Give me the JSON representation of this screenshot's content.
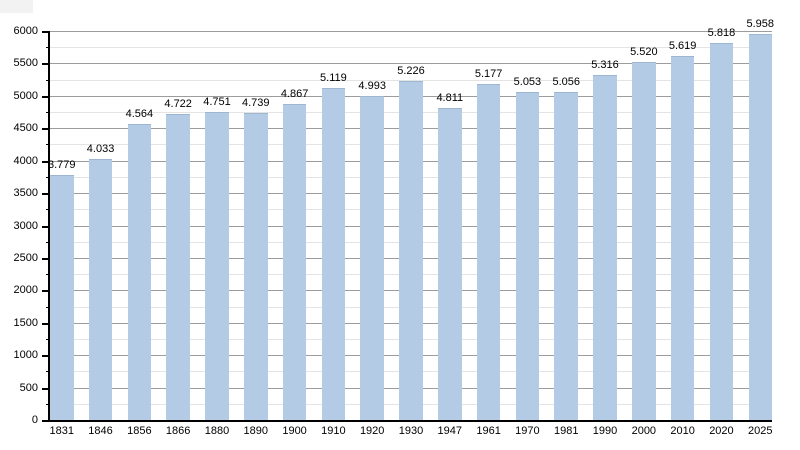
{
  "chart_data": {
    "type": "bar",
    "title": "",
    "xlabel": "",
    "ylabel": "",
    "categories": [
      "1831",
      "1846",
      "1856",
      "1866",
      "1880",
      "1890",
      "1900",
      "1910",
      "1920",
      "1930",
      "1947",
      "1961",
      "1970",
      "1981",
      "1990",
      "2000",
      "2010",
      "2020",
      "2025"
    ],
    "values": [
      3779,
      4033,
      4564,
      4722,
      4751,
      4739,
      4867,
      5119,
      4993,
      5226,
      4811,
      5177,
      5053,
      5056,
      5316,
      5520,
      5619,
      5818,
      5958
    ],
    "value_labels": [
      "3.779",
      "4.033",
      "4.564",
      "4.722",
      "4.751",
      "4.739",
      "4.867",
      "5.119",
      "4.993",
      "5.226",
      "4.811",
      "5.177",
      "5.053",
      "5.056",
      "5.316",
      "5.520",
      "5.619",
      "5.818",
      "5.958"
    ],
    "ylim": [
      0,
      6000
    ],
    "y_major_step": 500,
    "y_minor_step": 250,
    "y_tick_labels": [
      "0",
      "500",
      "1000",
      "1500",
      "2000",
      "2500",
      "3000",
      "3500",
      "4000",
      "4500",
      "5000",
      "5500",
      "6000"
    ],
    "grid": "major-and-minor",
    "legend": "none"
  },
  "colors": {
    "bar_fill": "#b3cbe5",
    "bar_edge": "#9db6d1",
    "grid_major": "#9c9c9c",
    "grid_minor": "#e4e4e4",
    "axis": "#000000",
    "text": "#000000",
    "background": "#ffffff",
    "corner_artifact": "#f2f2f2"
  }
}
